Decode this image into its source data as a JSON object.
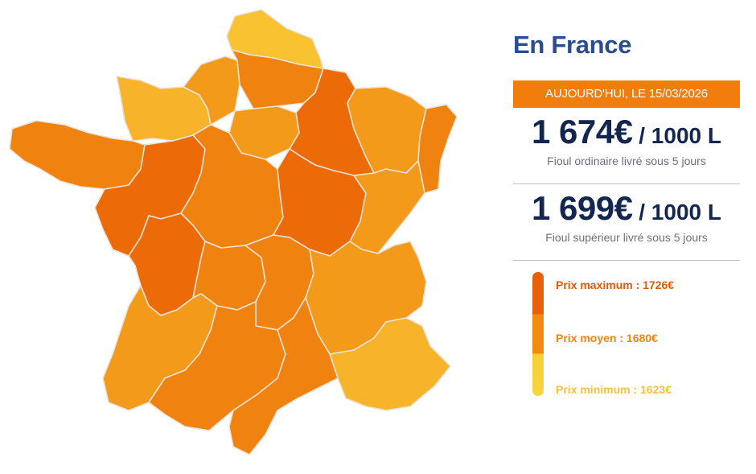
{
  "header": {
    "title": "En France",
    "date_label": "AUJOURD'HUI, LE 15/03/2026"
  },
  "prices": [
    {
      "amount": "1 674€",
      "unit": " / 1000 L",
      "description": "Fioul ordinaire livré sous 5 jours"
    },
    {
      "amount": "1 699€",
      "unit": " / 1000 L",
      "description": "Fioul supérieur livré sous 5 jours"
    }
  ],
  "legend": {
    "max_label": "Prix maximum : 1726€",
    "avg_label": "Prix moyen : 1680€",
    "min_label": "Prix minimum : 1623€"
  },
  "colors": {
    "title": "#2a4d8f",
    "banner": "#f07d0c",
    "price_text": "#13264f",
    "max": "#e8600a",
    "avg": "#f38a10",
    "min": "#f6ce3a",
    "region_dark": "#ec6b08",
    "region_mid": "#f0820f",
    "region_light": "#f49a1a",
    "region_lightest": "#f7b42a",
    "region_yellow": "#f8c230"
  }
}
